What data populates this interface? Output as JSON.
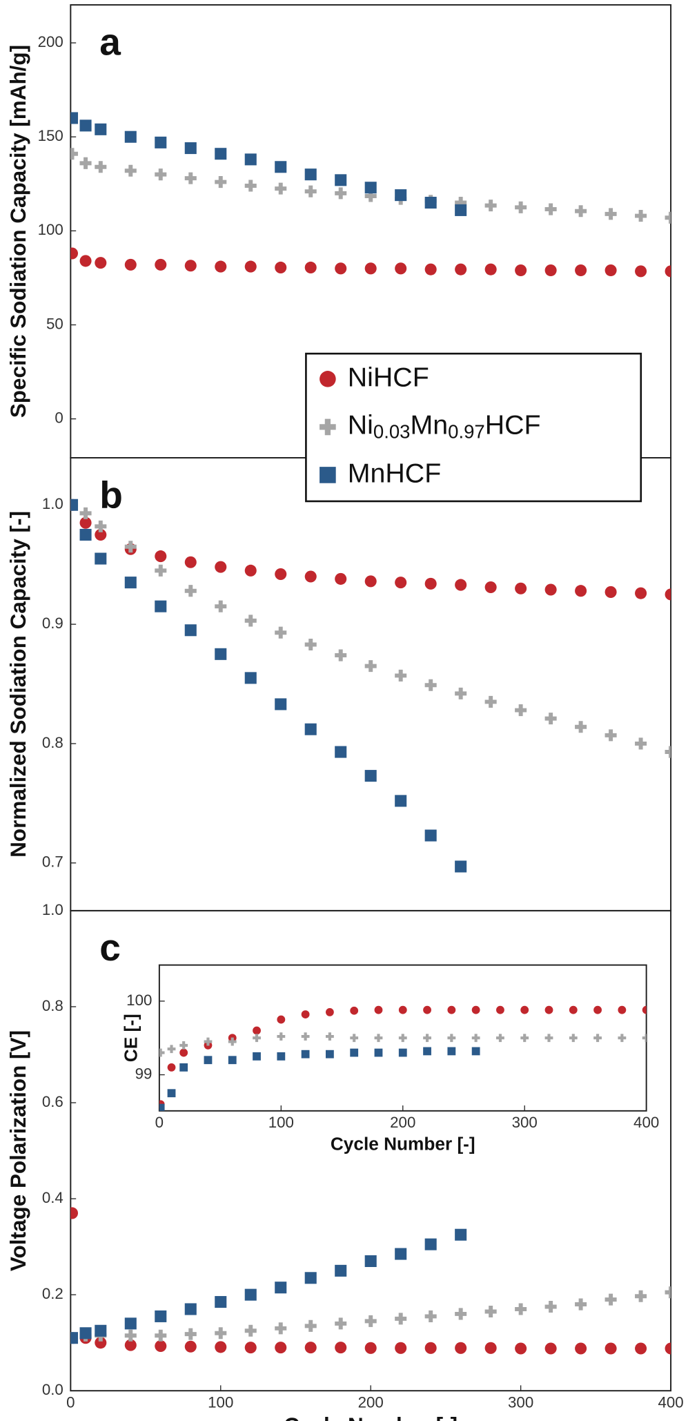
{
  "chart_data": [
    {
      "type": "scatter",
      "panel": "a",
      "ylabel": "Specific Sodiation Capacity [mAh/g]",
      "xlim": [
        0,
        400
      ],
      "ylim": [
        -20.7,
        220.2
      ],
      "yticks": [
        0,
        50,
        100,
        150,
        200
      ],
      "legend": true,
      "x": [
        1,
        10,
        20,
        40,
        60,
        80,
        100,
        120,
        140,
        160,
        180,
        200,
        220,
        240,
        260,
        280,
        300,
        320,
        340,
        360,
        380,
        400
      ],
      "series": [
        {
          "name": "NiHCF",
          "color": "#c1272d",
          "marker": "circle",
          "values": [
            88,
            84,
            83,
            82,
            82,
            81.5,
            81,
            81,
            80.5,
            80.5,
            80,
            80,
            80,
            79.5,
            79.5,
            79.5,
            79,
            79,
            79,
            79,
            78.5,
            78.5
          ]
        },
        {
          "name": "Ni0.03Mn0.97HCF",
          "color": "#a5a5a5",
          "marker": "plus",
          "values": [
            141,
            136,
            134,
            132,
            130,
            128,
            126,
            124,
            122.5,
            121,
            120,
            118.5,
            117,
            116,
            115,
            113.5,
            112.5,
            111.5,
            110.5,
            109,
            108,
            107
          ]
        },
        {
          "name": "MnHCF",
          "color": "#2b5a8a",
          "marker": "square",
          "values": [
            160,
            156,
            154,
            150,
            147,
            144,
            141,
            138,
            134,
            130,
            127,
            123,
            119,
            115,
            111,
            null,
            null,
            null,
            null,
            null,
            null,
            null
          ]
        }
      ]
    },
    {
      "type": "scatter",
      "panel": "b",
      "ylabel": "Normalized Sodiation Capacity [-]",
      "xlim": [
        0,
        400
      ],
      "ylim": [
        0.66,
        1.0395
      ],
      "yticks": [
        0.7,
        0.8,
        0.9,
        {
          "value": 1,
          "label": "1.0"
        }
      ],
      "x": [
        1,
        10,
        20,
        40,
        60,
        80,
        100,
        120,
        140,
        160,
        180,
        200,
        220,
        240,
        260,
        280,
        300,
        320,
        340,
        360,
        380,
        400
      ],
      "series": [
        {
          "name": "NiHCF",
          "color": "#c1272d",
          "marker": "circle",
          "values": [
            1.0,
            0.985,
            0.975,
            0.963,
            0.957,
            0.952,
            0.948,
            0.945,
            0.942,
            0.94,
            0.938,
            0.936,
            0.935,
            0.934,
            0.933,
            0.931,
            0.93,
            0.929,
            0.928,
            0.927,
            0.926,
            0.925
          ]
        },
        {
          "name": "Ni0.03Mn0.97HCF",
          "color": "#a5a5a5",
          "marker": "plus",
          "values": [
            1.0,
            0.993,
            0.982,
            0.965,
            0.945,
            0.928,
            0.915,
            0.903,
            0.893,
            0.883,
            0.874,
            0.865,
            0.857,
            0.849,
            0.842,
            0.835,
            0.828,
            0.821,
            0.814,
            0.807,
            0.8,
            0.793
          ]
        },
        {
          "name": "MnHCF",
          "color": "#2b5a8a",
          "marker": "square",
          "values": [
            1.0,
            0.975,
            0.955,
            0.935,
            0.915,
            0.895,
            0.875,
            0.855,
            0.833,
            0.812,
            0.793,
            0.773,
            0.752,
            0.723,
            0.697,
            null,
            null,
            null,
            null,
            null,
            null,
            null
          ]
        }
      ]
    },
    {
      "type": "scatter",
      "panel": "c",
      "ylabel": "Voltage Polarization [V]",
      "xlabel": "Cycle Number [-]",
      "xlim": [
        0,
        400
      ],
      "xticks": [
        0,
        100,
        200,
        300,
        400
      ],
      "ylim": [
        0,
        1.0
      ],
      "yticks": [
        {
          "value": 0,
          "label": "0.0"
        },
        0.2,
        0.4,
        0.6,
        0.8,
        {
          "value": 1,
          "label": "1.0"
        }
      ],
      "x": [
        1,
        10,
        20,
        40,
        60,
        80,
        100,
        120,
        140,
        160,
        180,
        200,
        220,
        240,
        260,
        280,
        300,
        320,
        340,
        360,
        380,
        400
      ],
      "series": [
        {
          "name": "NiHCF",
          "color": "#c1272d",
          "marker": "circle",
          "values": [
            0.37,
            0.11,
            0.1,
            0.095,
            0.093,
            0.092,
            0.091,
            0.09,
            0.09,
            0.09,
            0.09,
            0.089,
            0.089,
            0.089,
            0.089,
            0.089,
            0.088,
            0.088,
            0.088,
            0.088,
            0.088,
            0.088
          ]
        },
        {
          "name": "Ni0.03Mn0.97HCF",
          "color": "#a5a5a5",
          "marker": "plus",
          "values": [
            0.11,
            0.115,
            0.115,
            0.115,
            0.115,
            0.118,
            0.12,
            0.125,
            0.13,
            0.135,
            0.14,
            0.145,
            0.15,
            0.155,
            0.16,
            0.165,
            0.17,
            0.175,
            0.18,
            0.19,
            0.197,
            0.205
          ]
        },
        {
          "name": "MnHCF",
          "color": "#2b5a8a",
          "marker": "square",
          "values": [
            0.11,
            0.12,
            0.125,
            0.14,
            0.155,
            0.17,
            0.185,
            0.2,
            0.215,
            0.235,
            0.25,
            0.27,
            0.285,
            0.305,
            0.325,
            null,
            null,
            null,
            null,
            null,
            null,
            null
          ]
        }
      ]
    },
    {
      "type": "scatter",
      "ylabel": "CE [-]",
      "xlabel": "Cycle Number [-]",
      "xlim": [
        0,
        400
      ],
      "xticks": [
        0,
        100,
        200,
        300,
        400
      ],
      "ylim": [
        98.51,
        100.49
      ],
      "yticks": [
        99,
        100
      ],
      "x": [
        1,
        10,
        20,
        40,
        60,
        80,
        100,
        120,
        140,
        160,
        180,
        200,
        220,
        240,
        260,
        280,
        300,
        320,
        340,
        360,
        380,
        400
      ],
      "series": [
        {
          "name": "NiHCF",
          "color": "#c1272d",
          "marker": "circle",
          "values": [
            98.6,
            99.1,
            99.3,
            99.4,
            99.5,
            99.6,
            99.75,
            99.82,
            99.85,
            99.87,
            99.88,
            99.88,
            99.88,
            99.88,
            99.88,
            99.88,
            99.88,
            99.88,
            99.88,
            99.88,
            99.88,
            99.88
          ]
        },
        {
          "name": "Ni0.03Mn0.97HCF",
          "color": "#a5a5a5",
          "marker": "plus",
          "values": [
            99.3,
            99.35,
            99.4,
            99.45,
            99.45,
            99.5,
            99.52,
            99.52,
            99.52,
            99.5,
            99.5,
            99.5,
            99.5,
            99.5,
            99.5,
            99.5,
            99.5,
            99.5,
            99.5,
            99.5,
            99.5,
            99.5
          ]
        },
        {
          "name": "MnHCF",
          "color": "#2b5a8a",
          "marker": "square",
          "values": [
            98.55,
            98.75,
            99.1,
            99.2,
            99.2,
            99.25,
            99.25,
            99.28,
            99.28,
            99.3,
            99.3,
            99.3,
            99.32,
            99.32,
            99.32,
            null,
            null,
            null,
            null,
            null,
            null,
            null
          ]
        }
      ]
    }
  ]
}
